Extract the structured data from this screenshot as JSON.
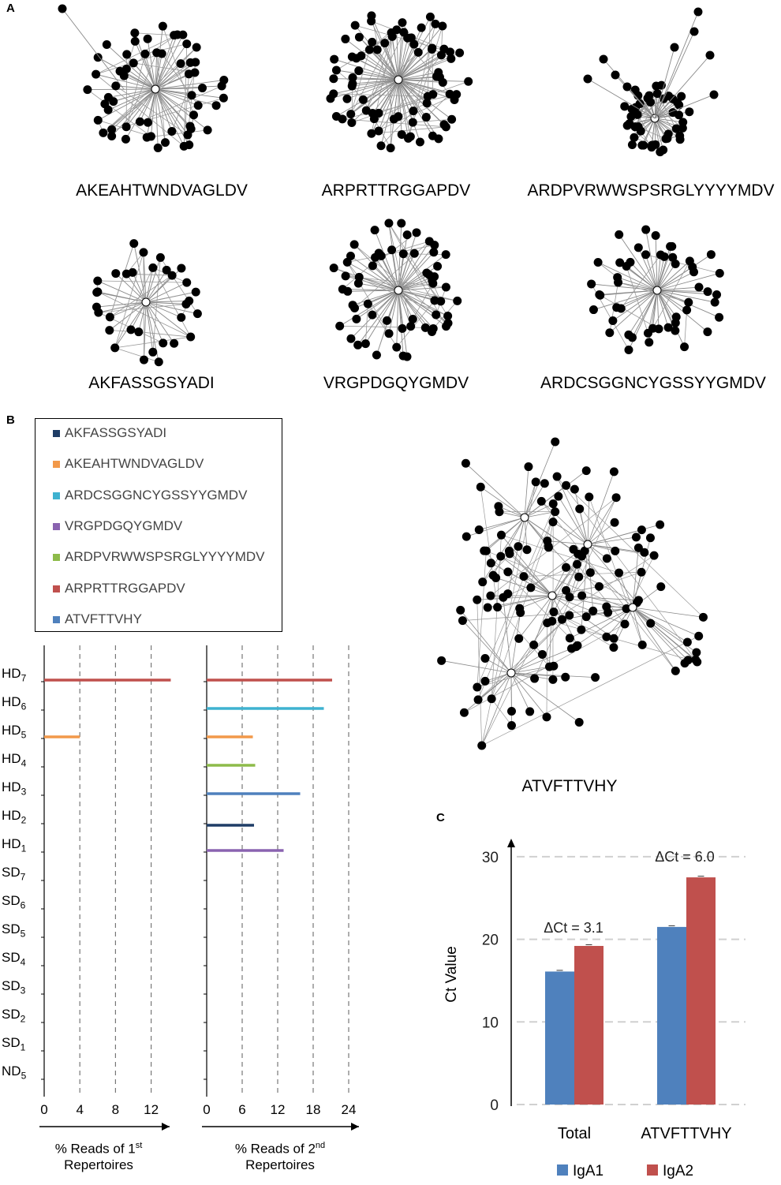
{
  "panels": {
    "a": "A",
    "b": "B",
    "c": "C"
  },
  "networks": [
    {
      "label": "AKEAHTWNDVAGLDV"
    },
    {
      "label": "ARPRTTRGGAPDV"
    },
    {
      "label": "ARDPVRWWSPSRGLYYYYMDV"
    },
    {
      "label": "AKFASSGSYADI"
    },
    {
      "label": "VRGPDGQYGMDV"
    },
    {
      "label": "ARDCSGGNCYGSSYYGMDV"
    },
    {
      "label": "ATVFTTVHY"
    }
  ],
  "legend": [
    {
      "label": "AKFASSGSYADI",
      "color": "#1f3d66"
    },
    {
      "label": "AKEAHTWNDVAGLDV",
      "color": "#f2994a"
    },
    {
      "label": "ARDCSGGNCYGSSYYGMDV",
      "color": "#3fb2d0"
    },
    {
      "label": "VRGPDGQYGMDV",
      "color": "#8a63b0"
    },
    {
      "label": "ARDPVRWWSPSRGLYYYYMDV",
      "color": "#8dbb4a"
    },
    {
      "label": "ARPRTTRGGAPDV",
      "color": "#c0504d"
    },
    {
      "label": "ATVFTTVHY",
      "color": "#4f81bd"
    }
  ],
  "chart_data": [
    {
      "type": "bar",
      "orientation": "horizontal",
      "categories": [
        {
          "base": "HD",
          "sub": "7"
        },
        {
          "base": "HD",
          "sub": "6"
        },
        {
          "base": "HD",
          "sub": "5"
        },
        {
          "base": "HD",
          "sub": "4"
        },
        {
          "base": "HD",
          "sub": "3"
        },
        {
          "base": "HD",
          "sub": "2"
        },
        {
          "base": "HD",
          "sub": "1"
        },
        {
          "base": "SD",
          "sub": "7"
        },
        {
          "base": "SD",
          "sub": "6"
        },
        {
          "base": "SD",
          "sub": "5"
        },
        {
          "base": "SD",
          "sub": "4"
        },
        {
          "base": "SD",
          "sub": "3"
        },
        {
          "base": "SD",
          "sub": "2"
        },
        {
          "base": "SD",
          "sub": "1"
        },
        {
          "base": "ND",
          "sub": "5"
        }
      ],
      "xlabel_line1": "% Reads of 1",
      "xlabel_sup": "st",
      "xlabel_line2": "Repertoires",
      "xlim": [
        0,
        14
      ],
      "ticks": [
        "0",
        "4",
        "8",
        "12"
      ],
      "tick_values": [
        0,
        4,
        8,
        12
      ],
      "bars": [
        {
          "category": "HD7",
          "series": "ARPRTTRGGAPDV",
          "value": 14.2,
          "color": "#c0504d"
        },
        {
          "category": "HD5",
          "series": "AKEAHTWNDVAGLDV",
          "value": 4.0,
          "color": "#f2994a"
        }
      ]
    },
    {
      "type": "bar",
      "orientation": "horizontal",
      "xlabel_line1": "% Reads of 2",
      "xlabel_sup": "nd",
      "xlabel_line2": "Repertoires",
      "xlim": [
        0,
        26
      ],
      "ticks": [
        "0",
        "6",
        "12",
        "18",
        "24"
      ],
      "tick_values": [
        0,
        6,
        12,
        18,
        24
      ],
      "bars": [
        {
          "category": "HD7",
          "series": "ARPRTTRGGAPDV",
          "value": 21.2,
          "color": "#c0504d"
        },
        {
          "category": "HD6",
          "series": "ARDCSGGNCYGSSYYGMDV",
          "value": 19.8,
          "color": "#3fb2d0"
        },
        {
          "category": "HD5",
          "series": "AKEAHTWNDVAGLDV",
          "value": 7.8,
          "color": "#f2994a"
        },
        {
          "category": "HD4",
          "series": "ARDPVRWWSPSRGLYYYYMDV",
          "value": 8.2,
          "color": "#8dbb4a"
        },
        {
          "category": "HD3",
          "series": "ATVFTTVHY",
          "value": 15.8,
          "color": "#4f81bd"
        },
        {
          "category": "HD2",
          "series": "AKFASSGSYADI",
          "value": 8.0,
          "color": "#1f3d66"
        },
        {
          "category": "HD1",
          "series": "VRGPDGQYGMDV",
          "value": 13.0,
          "color": "#8a63b0"
        }
      ]
    },
    {
      "type": "bar",
      "title": "",
      "ylabel": "Ct Value",
      "ylim": [
        0,
        30
      ],
      "yticks": [
        "0",
        "10",
        "20",
        "30"
      ],
      "ytick_values": [
        0,
        10,
        20,
        30
      ],
      "categories": [
        "Total",
        "ATVFTTVHY"
      ],
      "series": [
        {
          "name": "IgA1",
          "values": [
            16.1,
            21.5
          ],
          "color": "#4f81bd"
        },
        {
          "name": "IgA2",
          "values": [
            19.2,
            27.5
          ],
          "color": "#c0504d"
        }
      ],
      "annotations": [
        "ΔCt = 3.1",
        "ΔCt = 6.0"
      ]
    }
  ]
}
